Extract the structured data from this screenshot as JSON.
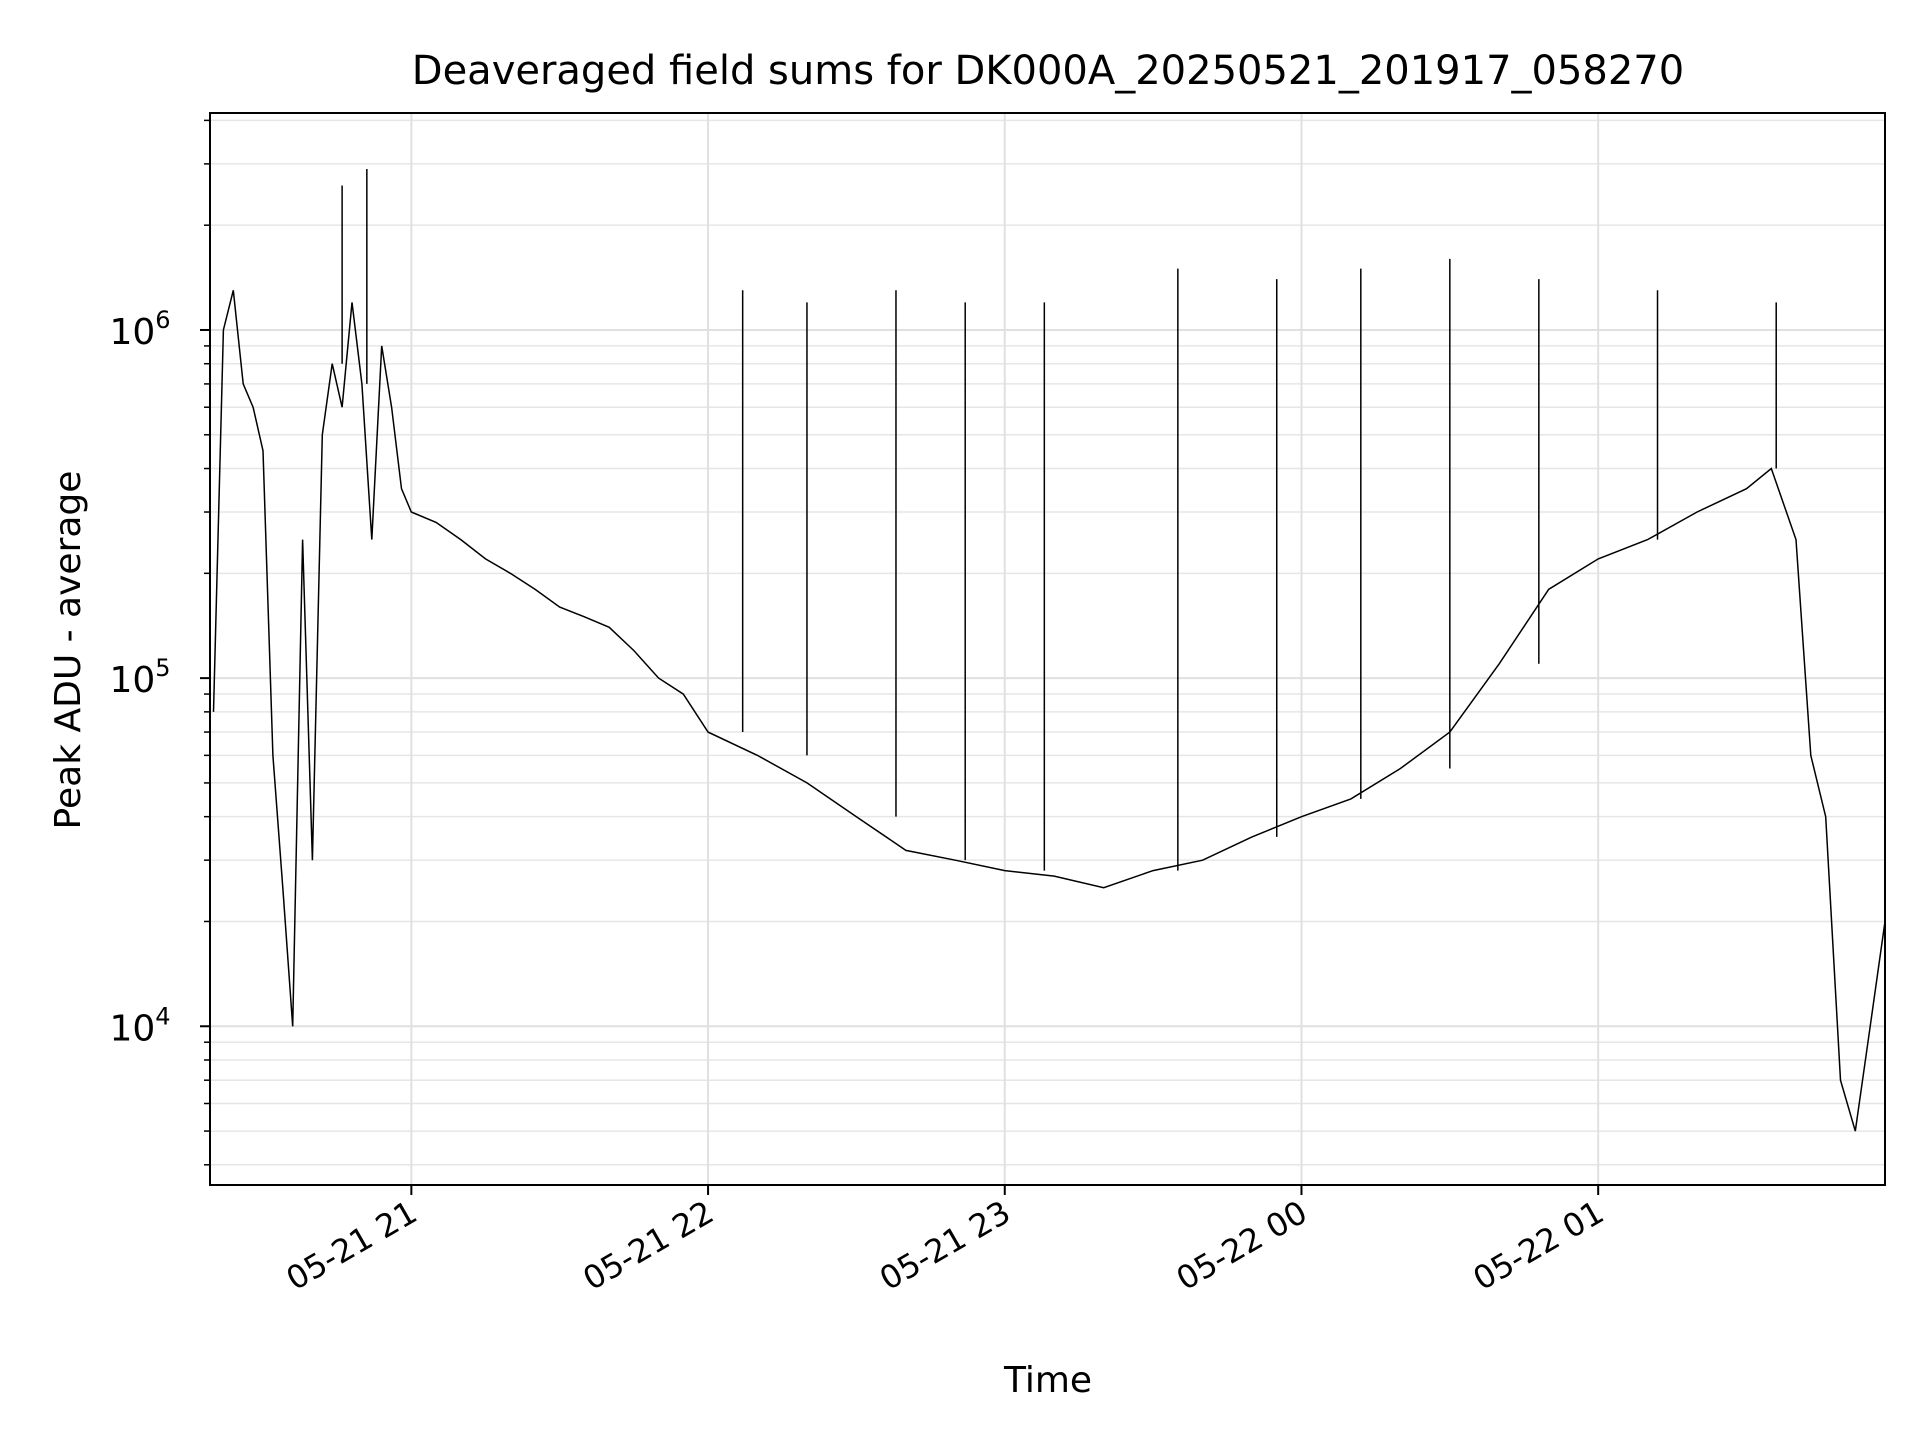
{
  "chart_data": {
    "type": "line",
    "title": "Deaveraged field sums for DK000A_20250521_201917_058270",
    "xlabel": "Time",
    "ylabel": "Peak ADU - average",
    "y_scale": "log",
    "ylim": [
      3500,
      4200000
    ],
    "xlim": [
      "2025-05-21 20:19:17",
      "2025-05-22 01:58:00"
    ],
    "grid": true,
    "line_color": "#000000",
    "x_ticks": [
      {
        "value": "2025-05-21 21:00",
        "label": "05-21 21"
      },
      {
        "value": "2025-05-21 22:00",
        "label": "05-21 22"
      },
      {
        "value": "2025-05-21 23:00",
        "label": "05-21 23"
      },
      {
        "value": "2025-05-22 00:00",
        "label": "05-22 00"
      },
      {
        "value": "2025-05-22 01:00",
        "label": "05-22 01"
      }
    ],
    "y_ticks": [
      {
        "value": 10000,
        "base": "10",
        "exp": "4"
      },
      {
        "value": 100000,
        "base": "10",
        "exp": "5"
      },
      {
        "value": 1000000,
        "base": "10",
        "exp": "6"
      }
    ],
    "series": [
      {
        "x": [
          "2025-05-21 20:20",
          "2025-05-21 20:22",
          "2025-05-21 20:24",
          "2025-05-21 20:26",
          "2025-05-21 20:28",
          "2025-05-21 20:30",
          "2025-05-21 20:32",
          "2025-05-21 20:34",
          "2025-05-21 20:36",
          "2025-05-21 20:38",
          "2025-05-21 20:40",
          "2025-05-21 20:42",
          "2025-05-21 20:44",
          "2025-05-21 20:46",
          "2025-05-21 20:48",
          "2025-05-21 20:50",
          "2025-05-21 20:52",
          "2025-05-21 20:54",
          "2025-05-21 20:56",
          "2025-05-21 20:58",
          "2025-05-21 21:00",
          "2025-05-21 21:05",
          "2025-05-21 21:10",
          "2025-05-21 21:15",
          "2025-05-21 21:20",
          "2025-05-21 21:25",
          "2025-05-21 21:30",
          "2025-05-21 21:35",
          "2025-05-21 21:40",
          "2025-05-21 21:45",
          "2025-05-21 21:50",
          "2025-05-21 21:55",
          "2025-05-21 22:00",
          "2025-05-21 22:10",
          "2025-05-21 22:20",
          "2025-05-21 22:30",
          "2025-05-21 22:40",
          "2025-05-21 22:50",
          "2025-05-21 23:00",
          "2025-05-21 23:10",
          "2025-05-21 23:20",
          "2025-05-21 23:30",
          "2025-05-21 23:40",
          "2025-05-21 23:50",
          "2025-05-22 00:00",
          "2025-05-22 00:10",
          "2025-05-22 00:20",
          "2025-05-22 00:30",
          "2025-05-22 00:40",
          "2025-05-22 00:50",
          "2025-05-22 01:00",
          "2025-05-22 01:10",
          "2025-05-22 01:20",
          "2025-05-22 01:30",
          "2025-05-22 01:35",
          "2025-05-22 01:40",
          "2025-05-22 01:43",
          "2025-05-22 01:46",
          "2025-05-22 01:49",
          "2025-05-22 01:52",
          "2025-05-22 01:55",
          "2025-05-22 01:58"
        ],
        "values": [
          80000,
          1000000,
          1300000,
          700000,
          600000,
          450000,
          60000,
          25000,
          10000,
          250000,
          30000,
          500000,
          800000,
          600000,
          1200000,
          700000,
          250000,
          900000,
          600000,
          350000,
          300000,
          280000,
          250000,
          220000,
          200000,
          180000,
          160000,
          150000,
          140000,
          120000,
          100000,
          90000,
          70000,
          60000,
          50000,
          40000,
          32000,
          30000,
          28000,
          27000,
          25000,
          28000,
          30000,
          35000,
          40000,
          45000,
          55000,
          70000,
          110000,
          180000,
          220000,
          250000,
          300000,
          350000,
          400000,
          250000,
          60000,
          40000,
          7000,
          5000,
          10000,
          20000
        ]
      }
    ],
    "spikes": [
      {
        "x": "2025-05-21 20:46",
        "y": 2600000
      },
      {
        "x": "2025-05-21 20:51",
        "y": 2900000
      },
      {
        "x": "2025-05-21 22:07",
        "y": 1300000
      },
      {
        "x": "2025-05-21 22:20",
        "y": 1200000
      },
      {
        "x": "2025-05-21 22:38",
        "y": 1300000
      },
      {
        "x": "2025-05-21 22:52",
        "y": 1200000
      },
      {
        "x": "2025-05-21 23:08",
        "y": 1200000
      },
      {
        "x": "2025-05-21 23:35",
        "y": 1500000
      },
      {
        "x": "2025-05-21 23:55",
        "y": 1400000
      },
      {
        "x": "2025-05-22 00:12",
        "y": 1500000
      },
      {
        "x": "2025-05-22 00:30",
        "y": 1600000
      },
      {
        "x": "2025-05-22 00:48",
        "y": 1400000
      },
      {
        "x": "2025-05-22 01:12",
        "y": 1300000
      },
      {
        "x": "2025-05-22 01:36",
        "y": 1200000
      }
    ]
  }
}
